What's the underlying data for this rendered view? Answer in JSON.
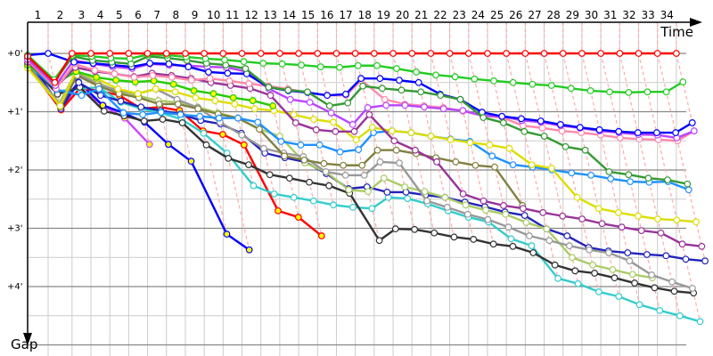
{
  "chart_data": {
    "type": "line",
    "title": "",
    "xlabel": "Time",
    "ylabel": "Gap",
    "x_tick_labels": [
      "1",
      "2",
      "3",
      "4",
      "5",
      "6",
      "7",
      "8",
      "9",
      "10",
      "11",
      "12",
      "13",
      "14",
      "15",
      "16",
      "17",
      "18",
      "19",
      "20",
      "21",
      "22",
      "23",
      "24",
      "25",
      "26",
      "27",
      "28",
      "29",
      "30",
      "31",
      "32",
      "33",
      "34"
    ],
    "y_ticks": [
      {
        "value": 0,
        "label": "+0'"
      },
      {
        "value": 1,
        "label": "+1'"
      },
      {
        "value": 2,
        "label": "+2'"
      },
      {
        "value": 3,
        "label": "+3'"
      },
      {
        "value": 4,
        "label": "+4'"
      }
    ],
    "y_unit": "minutes",
    "ylim": [
      0,
      5.2
    ],
    "y_inverted": true,
    "grid": true,
    "minor_grid_step": 0.5,
    "lap_lines": "dashed",
    "lap_line_color": "#ffaaaa",
    "series": [
      {
        "color": "#ff0000",
        "marker_fill": "#ffffff",
        "gaps": [
          0.05,
          0.5,
          0,
          0,
          0,
          0,
          0,
          0,
          0,
          0,
          0,
          0,
          0,
          0,
          0,
          0,
          0,
          0,
          0,
          0,
          0,
          0,
          0,
          0,
          0,
          0,
          0,
          0,
          0,
          0,
          0,
          0,
          0,
          0,
          0
        ]
      },
      {
        "color": "#22cc22",
        "marker_fill": "#ffffff",
        "gaps": [
          0.03,
          0.45,
          0.03,
          0.05,
          0.08,
          0.09,
          0.02,
          0.03,
          0.06,
          0.09,
          0.11,
          0.14,
          0.17,
          0.18,
          0.2,
          0.23,
          0.24,
          0.21,
          0.21,
          0.26,
          0.32,
          0.37,
          0.4,
          0.44,
          0.47,
          0.5,
          0.53,
          0.55,
          0.6,
          0.64,
          0.66,
          0.67,
          0.66,
          0.66,
          0.49
        ]
      },
      {
        "color": "#339933",
        "marker_fill": "#ffffff",
        "gaps": [
          0.05,
          0.48,
          0.05,
          0.12,
          0.15,
          0.18,
          0.05,
          0.08,
          0.12,
          0.17,
          0.2,
          0.26,
          0.58,
          0.63,
          0.66,
          0.9,
          0.85,
          0.56,
          0.6,
          0.63,
          0.66,
          0.72,
          0.79,
          1.1,
          1.19,
          1.34,
          1.42,
          1.6,
          1.66,
          2.03,
          2.08,
          2.14,
          2.17,
          2.24
        ]
      },
      {
        "color": "#0000ff",
        "marker_fill": "#ffffff",
        "gaps": [
          0.03,
          0,
          0.15,
          0.17,
          0.2,
          0.23,
          0.17,
          0.18,
          0.23,
          0.32,
          0.34,
          0.35,
          0.58,
          0.64,
          0.67,
          0.72,
          0.7,
          0.43,
          0.43,
          0.46,
          0.5,
          0.7,
          0.79,
          1.01,
          1.08,
          1.12,
          1.16,
          1.22,
          1.27,
          1.31,
          1.34,
          1.36,
          1.36,
          1.36,
          1.19
        ]
      },
      {
        "color": "#bb44ff",
        "marker_fill": "#ffffff",
        "gaps": [
          0.1,
          0.55,
          0.12,
          0.18,
          0.23,
          0.26,
          0.18,
          0.2,
          0.21,
          0.23,
          0.24,
          0.31,
          0.61,
          0.79,
          0.84,
          1.02,
          1.22,
          0.93,
          0.89,
          0.89,
          0.92,
          0.95,
          0.98,
          1.07,
          1.08,
          1.15,
          1.18,
          1.24,
          1.28,
          1.33,
          1.36,
          1.39,
          1.4,
          1.45,
          1.33
        ]
      },
      {
        "color": "#ff88aa",
        "marker_fill": "#ffffff",
        "gaps": [
          0.12,
          0.6,
          0.18,
          0.29,
          0.35,
          0.41,
          0.38,
          0.41,
          0.46,
          0.43,
          0.47,
          0.52,
          0.56,
          0.61,
          0.67,
          0.72,
          0.72,
          0.46,
          0.79,
          0.87,
          0.9,
          0.93,
          0.99,
          1.07,
          1.1,
          1.24,
          1.28,
          1.33,
          1.36,
          1.4,
          1.45,
          1.47,
          1.48,
          1.5,
          1.33
        ]
      },
      {
        "color": "#993399",
        "marker_fill": "#ffffff",
        "gaps": [
          0.15,
          0.58,
          0.24,
          0.31,
          0.35,
          0.4,
          0.34,
          0.38,
          0.43,
          0.5,
          0.55,
          0.6,
          0.72,
          1.19,
          1.31,
          1.34,
          1.34,
          1.05,
          1.5,
          1.66,
          1.86,
          2.41,
          2.53,
          2.61,
          2.66,
          2.73,
          2.79,
          2.84,
          2.92,
          2.98,
          3.04,
          3.08,
          3.27,
          3.31
        ]
      },
      {
        "color": "#22cc00",
        "marker_fill": "#ffff00",
        "gaps": [
          0.2,
          0.52,
          0.31,
          0.41,
          0.46,
          0.49,
          0.47,
          0.53,
          0.64,
          0.69,
          0.76,
          0.81,
          0.9
        ]
      },
      {
        "color": "#dddd00",
        "marker_fill": "#ffffff",
        "gaps": [
          0.25,
          0.9,
          0.31,
          0.43,
          0.61,
          0.69,
          0.61,
          0.66,
          0.76,
          0.81,
          0.87,
          0.95,
          0.98,
          1.05,
          1.13,
          1.18,
          1.48,
          1.27,
          1.33,
          1.36,
          1.42,
          1.48,
          1.53,
          1.57,
          1.63,
          1.91,
          1.97,
          2.47,
          2.66,
          2.73,
          2.79,
          2.84,
          2.86,
          2.89
        ]
      },
      {
        "color": "#1e90ff",
        "marker_fill": "#ffffff",
        "gaps": [
          0.18,
          0.62,
          0.72,
          0.61,
          1.02,
          1.05,
          1.01,
          1.05,
          1.08,
          1.11,
          1.11,
          1.18,
          1.51,
          1.57,
          1.57,
          1.69,
          1.65,
          1.36,
          1.33,
          1.36,
          1.42,
          1.47,
          1.51,
          1.76,
          1.91,
          1.95,
          2.0,
          2.05,
          2.09,
          2.15,
          2.2,
          2.21,
          2.2,
          2.34
        ]
      },
      {
        "color": "#808040",
        "marker_fill": "#ffffff",
        "gaps": [
          0.22,
          0.92,
          0.38,
          0.56,
          0.69,
          0.76,
          0.87,
          0.87,
          0.95,
          1.04,
          1.11,
          1.3,
          1.76,
          1.83,
          1.89,
          1.92,
          1.92,
          1.66,
          1.66,
          1.72,
          1.79,
          1.86,
          1.92,
          1.95,
          2.61
        ]
      },
      {
        "color": "#999999",
        "marker_fill": "#ffffff",
        "gaps": [
          0.2,
          0.88,
          0.34,
          0.53,
          0.64,
          0.69,
          0.61,
          0.79,
          0.93,
          1.18,
          1.4,
          1.63,
          1.71,
          1.77,
          2.03,
          2.09,
          2.09,
          1.86,
          1.88,
          2.53,
          2.64,
          2.76,
          2.85,
          2.98,
          3.13,
          3.21,
          3.3,
          3.37,
          3.42,
          3.56,
          3.8,
          3.92,
          4.03
        ]
      },
      {
        "color": "#aacc66",
        "marker_fill": "#ffffff",
        "gaps": [
          0.22,
          0.85,
          0.31,
          0.5,
          0.66,
          0.73,
          0.81,
          0.84,
          0.92,
          1.02,
          1.11,
          1.3,
          1.42,
          1.88,
          2.03,
          2.34,
          2.37,
          2.14,
          2.29,
          2.37,
          2.47,
          2.6,
          2.69,
          2.76,
          2.9,
          3.01,
          3.5,
          3.63,
          3.71,
          3.79,
          3.85
        ]
      },
      {
        "color": "#2222bb",
        "marker_fill": "#ffffff",
        "gaps": [
          0.08,
          0.95,
          0.5,
          0.72,
          0.82,
          0.92,
          0.98,
          1.04,
          1.15,
          1.21,
          1.37,
          1.71,
          1.79,
          1.86,
          2.06,
          2.32,
          2.29,
          2.38,
          2.38,
          2.43,
          2.47,
          2.55,
          2.63,
          2.72,
          2.78,
          3.01,
          3.13,
          3.33,
          3.39,
          3.42,
          3.45,
          3.47,
          3.53,
          3.56
        ]
      },
      {
        "color": "#333333",
        "marker_fill": "#ffffff",
        "gaps": [
          0.15,
          0.7,
          0.58,
          0.99,
          1.07,
          1.16,
          1.13,
          1.19,
          1.57,
          1.8,
          1.91,
          2.08,
          2.14,
          2.21,
          2.27,
          2.4,
          3.21,
          3.01,
          3.02,
          3.08,
          3.15,
          3.19,
          3.27,
          3.31,
          3.42,
          3.63,
          3.73,
          3.77,
          3.85,
          3.94,
          4.02,
          4.08,
          4.11
        ]
      },
      {
        "color": "#33cccc",
        "marker_fill": "#ffffff",
        "gaps": [
          0.2,
          0.65,
          0.61,
          0.58,
          0.84,
          0.95,
          1.02,
          1.13,
          1.37,
          1.71,
          2.27,
          2.41,
          2.47,
          2.53,
          2.6,
          2.64,
          2.66,
          2.47,
          2.49,
          2.58,
          2.7,
          2.81,
          2.89,
          3.18,
          3.3,
          3.86,
          3.95,
          4.09,
          4.17,
          4.31,
          4.41,
          4.5,
          4.6
        ]
      },
      {
        "color": "#ff0000",
        "marker_fill": "#ffff00",
        "gaps": [
          0.2,
          0.97,
          0.6,
          0.64,
          0.72,
          0.95,
          0.92,
          0.98,
          1.33,
          1.39,
          1.57,
          2.7,
          2.81,
          3.13
        ]
      },
      {
        "color": "#0000ff",
        "marker_fill": "#ffff00",
        "gaps": [
          0.1,
          0.9,
          0.49,
          0.89,
          1.02,
          1.18,
          1.56,
          1.85,
          3.1,
          3.37
        ]
      },
      {
        "color": "#cc44ff",
        "marker_fill": "#ffff00",
        "gaps": [
          0.18,
          0.95,
          0.6,
          0.89,
          1.11,
          1.56
        ]
      }
    ]
  }
}
